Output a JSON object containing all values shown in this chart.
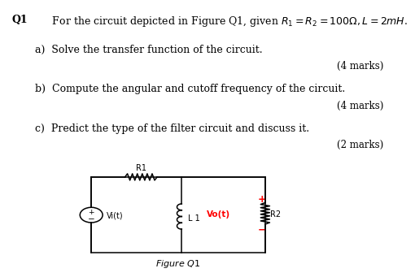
{
  "bg_color": "#ffffff",
  "q1_bold": "Q1",
  "q1_text": "   For the circuit depicted in Figure Q1, given $R_1 = R_2 = 100\\Omega, L = 2mH$.",
  "part_a": "a)  Solve the transfer function of the circuit.",
  "part_b": "b)  Compute the angular and cutoff frequency of the circuit.",
  "part_c": "c)  Predict the type of the filter circuit and discuss it.",
  "marks4a": "(4 marks)",
  "marks4b": "(4 marks)",
  "marks2": "(2 marks)",
  "figure_label": "Figure Q1",
  "r1_label": "R1",
  "l1_label": "L 1",
  "r2_label": "R2",
  "vi_label": "Vi(t)",
  "vo_label": "Vo(t)",
  "plus": "+",
  "minus": "−",
  "fontsize_main": 9.0,
  "fontsize_marks": 8.5,
  "fontsize_circuit": 7.0
}
